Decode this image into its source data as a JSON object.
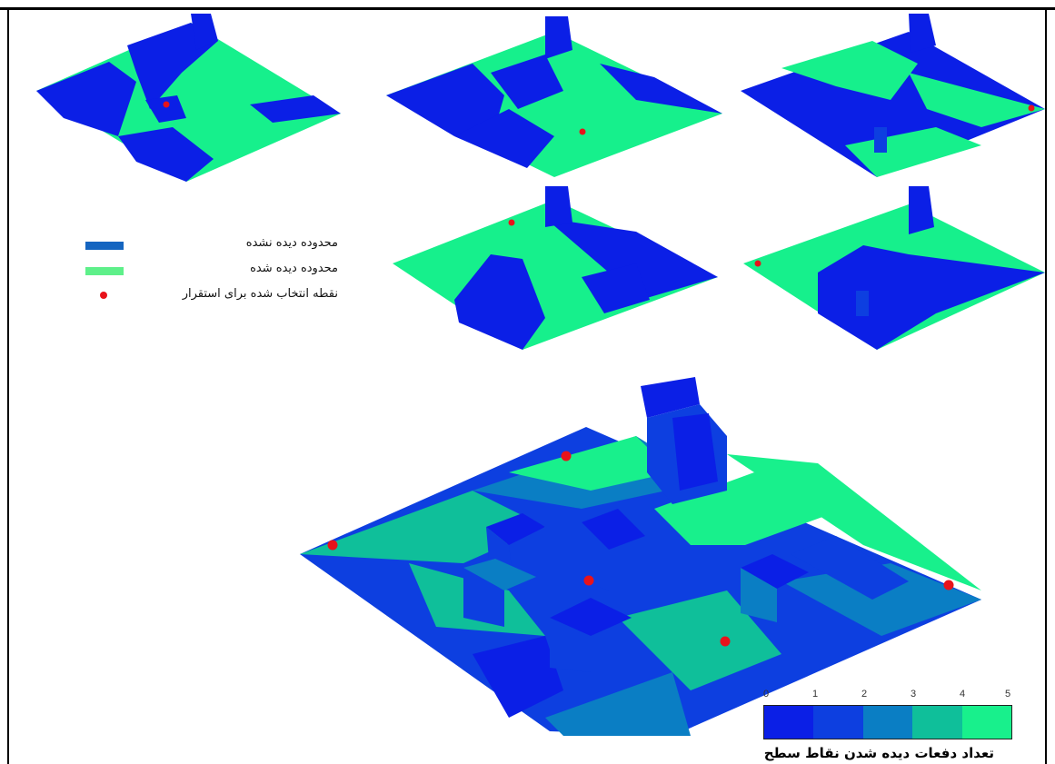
{
  "colors": {
    "unseen": "#0b1fe6",
    "seen": "#16f08c",
    "point": "#e8131b",
    "legend_unseen": "#1565c0",
    "legend_seen": "#5ef08a",
    "scale": [
      "#0b1fe6",
      "#0d3fe0",
      "#0a7ec4",
      "#0fbf9a",
      "#18f08c"
    ]
  },
  "legend": {
    "unseen_label": "محدوده دیده نشده",
    "seen_label": "محدوده دیده شده",
    "point_label": "نقطه انتخاب شده برای استقرار"
  },
  "color_scale": {
    "ticks": [
      "0",
      "1",
      "2",
      "3",
      "4",
      "5"
    ],
    "title": "تعداد دفعات دیده شدن نقاط سطح"
  }
}
